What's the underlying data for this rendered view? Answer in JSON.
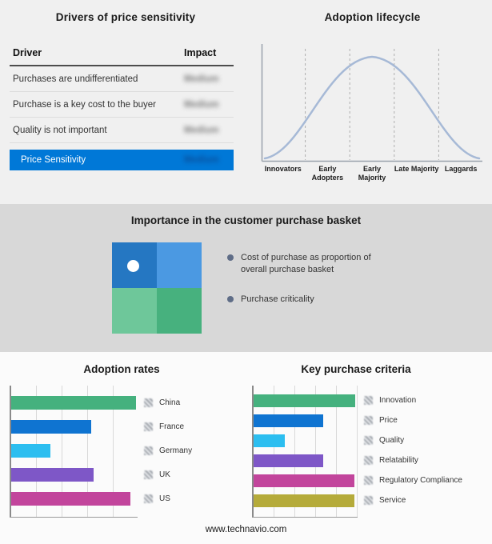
{
  "footer": {
    "text": "www.technavio.com"
  },
  "basket": {
    "title": "Importance in the customer purchase basket",
    "legend": [
      "Cost of purchase as proportion of overall purchase basket",
      "Purchase criticality"
    ],
    "quadrant_colors": {
      "top_left": "#2577c2",
      "top_right": "#4b99e2",
      "bottom_left": "#6ec79a",
      "bottom_right": "#47b17e"
    },
    "marker": "white-dot-in-top-left-quadrant"
  },
  "chart_data": [
    {
      "type": "table",
      "title": "Drivers of price sensitivity",
      "columns": [
        "Driver",
        "Impact"
      ],
      "rows": [
        [
          "Purchases are undifferentiated",
          "Medium"
        ],
        [
          "Purchase is a key cost to the buyer",
          "Medium"
        ],
        [
          "Quality is not important",
          "Medium"
        ]
      ],
      "highlight_row": [
        "Price Sensitivity",
        "Medium"
      ],
      "highlight_color": "#0078d7",
      "values_blurred": true
    },
    {
      "type": "line",
      "title": "Adoption lifecycle",
      "shape": "bell-curve",
      "categories": [
        "Innovators",
        "Early Adopters",
        "Early Majority",
        "Late Majority",
        "Laggards"
      ],
      "values": [
        8,
        42,
        100,
        42,
        8
      ],
      "line_color": "#a6b9d6",
      "grid": "dashed-vertical-dividers"
    },
    {
      "type": "bar",
      "title": "Adoption rates",
      "orientation": "horizontal",
      "categories": [
        "China",
        "France",
        "Germany",
        "UK",
        "US"
      ],
      "values": [
        99,
        63,
        31,
        65,
        94
      ],
      "value_note": "relative bar length in % of axis; numeric labels blurred in source",
      "colors": [
        "#45b17e",
        "#0f74d1",
        "#2cbef0",
        "#7e57c7",
        "#c2459c"
      ],
      "grid": true
    },
    {
      "type": "bar",
      "title": "Key purchase criteria",
      "orientation": "horizontal",
      "categories": [
        "Innovation",
        "Price",
        "Quality",
        "Relatability",
        "Regulatory Compliance",
        "Service"
      ],
      "values": [
        98,
        67,
        30,
        67,
        97,
        97
      ],
      "value_note": "relative bar length in % of axis; numeric labels blurred in source",
      "colors": [
        "#45b17e",
        "#0f74d1",
        "#2cbef0",
        "#7e57c7",
        "#c2459c",
        "#b5ab3a"
      ],
      "grid": true
    }
  ]
}
